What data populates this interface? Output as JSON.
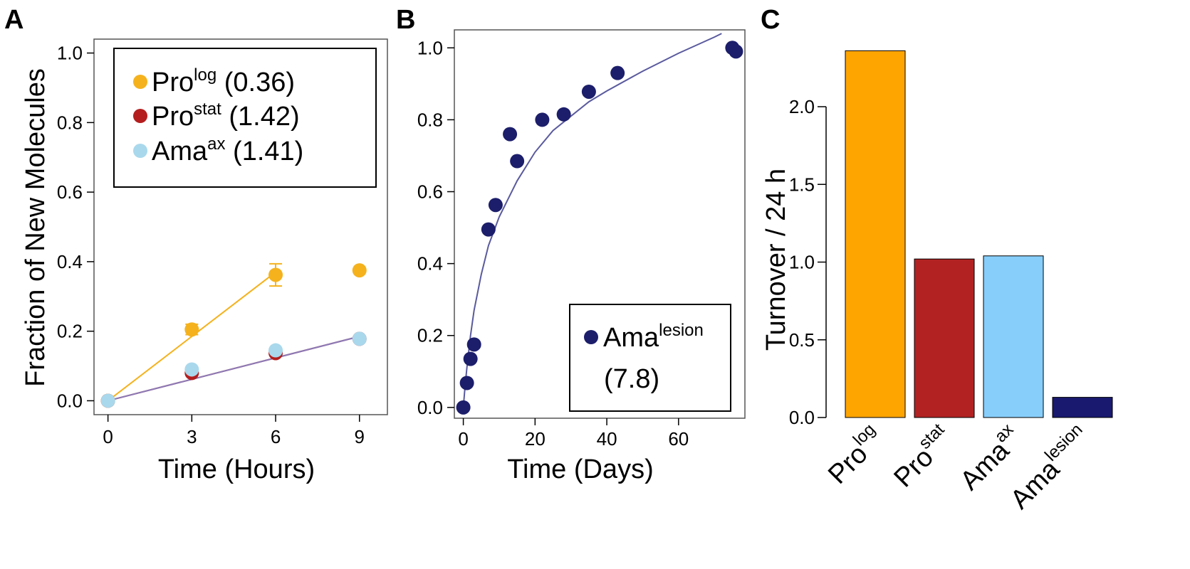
{
  "colors": {
    "pro_log": "#f5b21d",
    "pro_stat": "#b41e1e",
    "ama_ax": "#a9d8ec",
    "ama_lesion": "#1c1e6b",
    "fit_line": "#5a5a9e",
    "bar_pro_log": "#ffa500",
    "bar_pro_stat": "#b22222",
    "bar_ama_ax": "#87cefa",
    "bar_ama_lesion": "#191970"
  },
  "chart_data": [
    {
      "panel": "A",
      "type": "scatter",
      "xlabel": "Time (Hours)",
      "ylabel": "Fraction of New Molecules",
      "xlim": [
        -0.5,
        10.0
      ],
      "ylim": [
        -0.04,
        1.04
      ],
      "xticks": [
        0,
        3,
        6,
        9
      ],
      "yticks": [
        0.0,
        0.2,
        0.4,
        0.6,
        0.8,
        1.0
      ],
      "xtick_labels": [
        "0",
        "3",
        "6",
        "9"
      ],
      "ytick_labels": [
        "0.0",
        "0.2",
        "0.4",
        "0.6",
        "0.8",
        "1.0"
      ],
      "legend_position": "top-left",
      "series": [
        {
          "name_base": "Pro",
          "name_sup": "log",
          "name_suffix": " (0.36)",
          "color_key": "pro_log",
          "x": [
            0,
            3,
            6,
            9
          ],
          "y": [
            0.0,
            0.205,
            0.362,
            0.375
          ],
          "err": [
            0.0,
            0.015,
            0.032,
            0.0
          ],
          "fit": {
            "x": [
              0,
              6
            ],
            "y": [
              0.0,
              0.37
            ]
          }
        },
        {
          "name_base": "Pro",
          "name_sup": "stat",
          "name_suffix": " (1.42)",
          "color_key": "pro_stat",
          "x": [
            0,
            3,
            6,
            9
          ],
          "y": [
            0.0,
            0.08,
            0.137,
            0.178
          ],
          "err": [
            0.0,
            0.0,
            0.0,
            0.0
          ],
          "fit": {
            "x": [
              0,
              9
            ],
            "y": [
              0.0,
              0.185
            ]
          }
        },
        {
          "name_base": "Ama",
          "name_sup": "ax",
          "name_suffix": " (1.41)",
          "color_key": "ama_ax",
          "x": [
            0,
            3,
            6,
            9
          ],
          "y": [
            0.0,
            0.09,
            0.145,
            0.178
          ],
          "err": [
            0.0,
            0.0,
            0.0,
            0.0
          ],
          "fit": {
            "x": [
              0,
              9
            ],
            "y": [
              0.0,
              0.185
            ]
          }
        }
      ]
    },
    {
      "panel": "B",
      "type": "scatter",
      "xlabel": "Time (Days)",
      "ylabel": "",
      "xlim": [
        -2.5,
        78.5
      ],
      "ylim": [
        -0.03,
        1.05
      ],
      "xticks": [
        0,
        20,
        40,
        60
      ],
      "yticks": [
        0.0,
        0.2,
        0.4,
        0.6,
        0.8,
        1.0
      ],
      "xtick_labels": [
        "0",
        "20",
        "40",
        "60"
      ],
      "ytick_labels": [
        "0.0",
        "0.2",
        "0.4",
        "0.6",
        "0.8",
        "1.0"
      ],
      "legend_position": "bottom-right",
      "series": [
        {
          "name_base": "Ama",
          "name_sup": "lesion",
          "name_suffix": "(7.8)",
          "color_key": "ama_lesion",
          "x": [
            0,
            1,
            2,
            3,
            7,
            9,
            13,
            15,
            22,
            28,
            35,
            43,
            75,
            76
          ],
          "y": [
            0.0,
            0.068,
            0.135,
            0.175,
            0.495,
            0.563,
            0.76,
            0.685,
            0.8,
            0.815,
            0.878,
            0.93,
            1.0,
            0.99
          ],
          "fit": {
            "x": [
              0,
              0.5,
              1,
              2,
              3,
              5,
              7,
              10,
              15,
              20,
              25,
              30,
              35,
              40,
              50,
              60,
              70,
              72
            ],
            "y": [
              0.0,
              0.06,
              0.11,
              0.2,
              0.27,
              0.37,
              0.45,
              0.53,
              0.63,
              0.71,
              0.77,
              0.81,
              0.85,
              0.88,
              0.935,
              0.985,
              1.03,
              1.04
            ]
          }
        }
      ]
    },
    {
      "panel": "C",
      "type": "bar",
      "xlabel": "",
      "ylabel": "Turnover / 24 h",
      "ylim": [
        0.0,
        2.4
      ],
      "yticks": [
        0.0,
        0.5,
        1.0,
        1.5,
        2.0
      ],
      "ytick_labels": [
        "0.0",
        "0.5",
        "1.0",
        "1.5",
        "2.0"
      ],
      "categories": [
        {
          "base": "Pro",
          "sup": "log"
        },
        {
          "base": "Pro",
          "sup": "stat"
        },
        {
          "base": "Ama",
          "sup": "ax"
        },
        {
          "base": "Ama",
          "sup": "lesion"
        }
      ],
      "values": [
        2.36,
        1.02,
        1.04,
        0.13
      ],
      "color_keys": [
        "bar_pro_log",
        "bar_pro_stat",
        "bar_ama_ax",
        "bar_ama_lesion"
      ]
    }
  ]
}
